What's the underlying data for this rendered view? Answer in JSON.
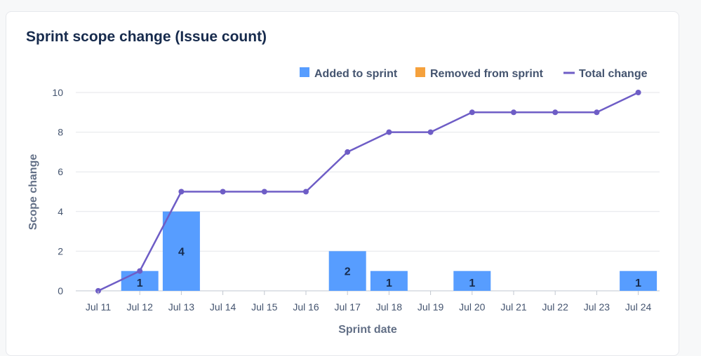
{
  "chart_data": {
    "type": "bar+line",
    "title": "Sprint scope change (Issue count)",
    "xlabel": "Sprint date",
    "ylabel": "Scope change",
    "ylim": [
      0,
      10
    ],
    "yticks": [
      0,
      2,
      4,
      6,
      8,
      10
    ],
    "categories": [
      "Jul 11",
      "Jul 12",
      "Jul 13",
      "Jul 14",
      "Jul 15",
      "Jul 16",
      "Jul 17",
      "Jul 18",
      "Jul 19",
      "Jul 20",
      "Jul 21",
      "Jul 22",
      "Jul 23",
      "Jul 24"
    ],
    "series": [
      {
        "name": "Added to sprint",
        "type": "bar",
        "color": "#579dff",
        "values": [
          0,
          1,
          4,
          0,
          0,
          0,
          2,
          1,
          0,
          1,
          0,
          0,
          0,
          1
        ]
      },
      {
        "name": "Removed from sprint",
        "type": "bar",
        "color": "#f5a13c",
        "values": [
          0,
          0,
          0,
          0,
          0,
          0,
          0,
          0,
          0,
          0,
          0,
          0,
          0,
          0
        ]
      },
      {
        "name": "Total change",
        "type": "line",
        "color": "#6e5dc6",
        "values": [
          0,
          1,
          5,
          5,
          5,
          5,
          7,
          8,
          8,
          9,
          9,
          9,
          9,
          10
        ]
      }
    ],
    "legend_position": "top-right",
    "grid": true
  }
}
